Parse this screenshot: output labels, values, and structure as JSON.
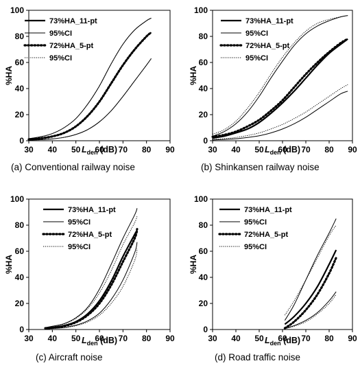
{
  "chart_data": [
    {
      "type": "line",
      "caption": "(a) Conventional railway noise",
      "xlabel_main": "L",
      "xlabel_sub": "den",
      "xlabel_unit": " (dB)",
      "ylabel": "%HA",
      "xlim": [
        30,
        90
      ],
      "ylim": [
        0,
        100
      ],
      "xticks": [
        30,
        40,
        50,
        60,
        70,
        80,
        90
      ],
      "yticks": [
        0,
        20,
        40,
        60,
        80,
        100
      ],
      "grid": false,
      "legend_position": "top-left",
      "series": [
        {
          "name": "73%HA_11-pt",
          "style": "thick-solid",
          "x": [
            30,
            35,
            40,
            45,
            50,
            55,
            60,
            65,
            70,
            75,
            80,
            82
          ],
          "y": [
            1,
            1.8,
            3.3,
            6,
            11,
            19,
            30,
            44,
            58,
            70,
            80,
            83
          ]
        },
        {
          "name": "95%CI",
          "style": "thin-solid",
          "x": [
            30,
            35,
            40,
            45,
            50,
            55,
            60,
            65,
            70,
            75,
            80,
            82
          ],
          "y": [
            1.6,
            3,
            5.5,
            10,
            17,
            28,
            42,
            59,
            74,
            85,
            92,
            94
          ]
        },
        {
          "name": "",
          "style": "thin-solid",
          "x": [
            30,
            35,
            40,
            45,
            50,
            55,
            60,
            65,
            70,
            75,
            80,
            82
          ],
          "y": [
            0.5,
            0.8,
            1.4,
            2.6,
            4.8,
            8.5,
            14.5,
            23,
            34,
            46,
            58,
            63
          ]
        },
        {
          "name": "72%HA_5-pt",
          "style": "dotted-thick",
          "x": [
            30,
            35,
            40,
            45,
            50,
            55,
            60,
            65,
            70,
            75,
            80,
            82
          ],
          "y": [
            1,
            1.8,
            3.3,
            6,
            11,
            19,
            30,
            44,
            58,
            70,
            80,
            83
          ]
        },
        {
          "name": "95%CI",
          "style": "thin-dotted",
          "x": [
            30,
            35,
            40,
            45,
            50,
            55,
            60,
            65,
            70,
            75,
            80,
            82
          ],
          "y": [
            1.6,
            3,
            5.5,
            10,
            17,
            28,
            42,
            59,
            74,
            85,
            92,
            94
          ]
        },
        {
          "name": "",
          "style": "thin-dotted",
          "x": [
            30,
            35,
            40,
            45,
            50,
            55,
            60,
            65,
            70,
            75,
            80,
            82
          ],
          "y": [
            0.5,
            0.8,
            1.4,
            2.6,
            4.8,
            8.5,
            14.5,
            23,
            34,
            46,
            58,
            63
          ]
        }
      ]
    },
    {
      "type": "line",
      "caption": "(b) Shinkansen railway noise",
      "xlabel_main": "L",
      "xlabel_sub": "den",
      "xlabel_unit": " (dB)",
      "ylabel": "%HA",
      "xlim": [
        30,
        90
      ],
      "ylim": [
        0,
        100
      ],
      "xticks": [
        30,
        40,
        50,
        60,
        70,
        80,
        90
      ],
      "yticks": [
        0,
        20,
        40,
        60,
        80,
        100
      ],
      "grid": false,
      "legend_position": "top-left",
      "series": [
        {
          "name": "73%HA_11-pt",
          "style": "thick-solid",
          "x": [
            30,
            35,
            40,
            45,
            50,
            55,
            60,
            65,
            70,
            75,
            80,
            85,
            88
          ],
          "y": [
            2,
            3.5,
            6,
            9,
            14,
            21,
            29,
            38,
            48,
            58,
            67,
            74,
            78
          ]
        },
        {
          "name": "95%CI",
          "style": "thin-solid",
          "x": [
            30,
            35,
            40,
            45,
            50,
            55,
            60,
            65,
            70,
            75,
            80,
            85,
            88
          ],
          "y": [
            3.5,
            7,
            13,
            22,
            34,
            48,
            61,
            73,
            82,
            88,
            92,
            95,
            96
          ]
        },
        {
          "name": "",
          "style": "thin-solid",
          "x": [
            30,
            35,
            40,
            45,
            50,
            55,
            60,
            65,
            70,
            75,
            80,
            85,
            88
          ],
          "y": [
            0.6,
            1,
            1.5,
            2.5,
            3.8,
            6,
            9,
            13,
            18,
            24,
            30,
            36,
            38
          ]
        },
        {
          "name": "72%HA_5-pt",
          "style": "dotted-thick",
          "x": [
            30,
            35,
            40,
            45,
            50,
            55,
            60,
            65,
            70,
            75,
            80,
            85,
            88
          ],
          "y": [
            3,
            4.5,
            7,
            11,
            16,
            23,
            31,
            41,
            51,
            60,
            68,
            75,
            78
          ]
        },
        {
          "name": "95%CI",
          "style": "thin-dotted",
          "x": [
            30,
            35,
            40,
            45,
            50,
            55,
            60,
            65,
            70,
            75,
            80,
            85,
            88
          ],
          "y": [
            5,
            8.5,
            15,
            25,
            37,
            51,
            64,
            75,
            84,
            90,
            93,
            95,
            96
          ]
        },
        {
          "name": "",
          "style": "thin-dotted",
          "x": [
            30,
            35,
            40,
            45,
            50,
            55,
            60,
            65,
            70,
            75,
            80,
            85,
            88
          ],
          "y": [
            1,
            1.6,
            2.5,
            4,
            6,
            9,
            12.5,
            17,
            22,
            28,
            34,
            40,
            43
          ]
        }
      ]
    },
    {
      "type": "line",
      "caption": "(c) Aircraft noise",
      "xlabel_main": "L",
      "xlabel_sub": "den",
      "xlabel_unit": " (dB)",
      "ylabel": "%HA",
      "xlim": [
        30,
        90
      ],
      "ylim": [
        0,
        100
      ],
      "xticks": [
        30,
        40,
        50,
        60,
        70,
        80,
        90
      ],
      "yticks": [
        0,
        20,
        40,
        60,
        80,
        100
      ],
      "grid": false,
      "legend_position": "top-right",
      "series": [
        {
          "name": "73%HA_11-pt",
          "style": "thick-solid",
          "x": [
            37,
            40,
            45,
            50,
            55,
            60,
            65,
            70,
            75,
            76
          ],
          "y": [
            1,
            1.5,
            3,
            6,
            12,
            22,
            37,
            56,
            73,
            76
          ]
        },
        {
          "name": "95%CI",
          "style": "thin-solid",
          "x": [
            37,
            40,
            45,
            50,
            55,
            60,
            65,
            70,
            75,
            76
          ],
          "y": [
            1.5,
            2.5,
            4.5,
            9,
            17,
            31,
            50,
            70,
            88,
            93
          ]
        },
        {
          "name": "",
          "style": "thin-solid",
          "x": [
            37,
            40,
            45,
            50,
            55,
            60,
            65,
            70,
            75,
            76
          ],
          "y": [
            0.5,
            0.8,
            1.6,
            3.3,
            6.6,
            12.5,
            23,
            38,
            59,
            67
          ]
        },
        {
          "name": "72%HA_5-pt",
          "style": "dotted-thick",
          "x": [
            37,
            40,
            45,
            50,
            55,
            60,
            65,
            70,
            75,
            76
          ],
          "y": [
            1,
            1.4,
            2.7,
            5.5,
            11,
            20,
            34,
            52,
            70,
            77
          ]
        },
        {
          "name": "95%CI",
          "style": "thin-dotted",
          "x": [
            37,
            40,
            45,
            50,
            55,
            60,
            65,
            70,
            75,
            76
          ],
          "y": [
            1.4,
            2.2,
            4.2,
            8.5,
            16,
            28,
            45,
            65,
            82,
            87
          ]
        },
        {
          "name": "",
          "style": "thin-dotted",
          "x": [
            37,
            40,
            45,
            50,
            55,
            60,
            65,
            70,
            75,
            76
          ],
          "y": [
            0.4,
            0.7,
            1.4,
            2.9,
            5.8,
            11,
            20,
            33,
            53,
            62
          ]
        }
      ]
    },
    {
      "type": "line",
      "caption": "(d) Road traffic noise",
      "xlabel_main": "L",
      "xlabel_sub": "den",
      "xlabel_unit": " (dB)",
      "ylabel": "%HA",
      "xlim": [
        30,
        90
      ],
      "ylim": [
        0,
        100
      ],
      "xticks": [
        30,
        40,
        50,
        60,
        70,
        80,
        90
      ],
      "yticks": [
        0,
        20,
        40,
        60,
        80,
        100
      ],
      "grid": false,
      "legend_position": "top-right",
      "series": [
        {
          "name": "73%HA_11-pt",
          "style": "thick-solid",
          "x": [
            61,
            65,
            70,
            75,
            80,
            83
          ],
          "y": [
            4,
            10,
            20,
            33,
            50,
            61
          ]
        },
        {
          "name": "95%CI",
          "style": "thin-solid",
          "x": [
            61,
            65,
            70,
            75,
            80,
            83
          ],
          "y": [
            7,
            19,
            38,
            57,
            74,
            85
          ]
        },
        {
          "name": "",
          "style": "thin-solid",
          "x": [
            61,
            65,
            70,
            75,
            80,
            83
          ],
          "y": [
            1,
            3,
            7,
            13,
            22,
            29
          ]
        },
        {
          "name": "72%HA_5-pt",
          "style": "dotted-thick",
          "x": [
            61,
            65,
            70,
            75,
            80,
            83
          ],
          "y": [
            1,
            6,
            15,
            27,
            43,
            55
          ]
        },
        {
          "name": "95%CI",
          "style": "thin-dotted",
          "x": [
            61,
            65,
            70,
            75,
            80,
            83
          ],
          "y": [
            11,
            22,
            38,
            55,
            72,
            80
          ]
        },
        {
          "name": "",
          "style": "thin-dotted",
          "x": [
            61,
            65,
            70,
            75,
            80,
            83
          ],
          "y": [
            0.5,
            2.5,
            6,
            12,
            20,
            27
          ]
        }
      ]
    }
  ]
}
